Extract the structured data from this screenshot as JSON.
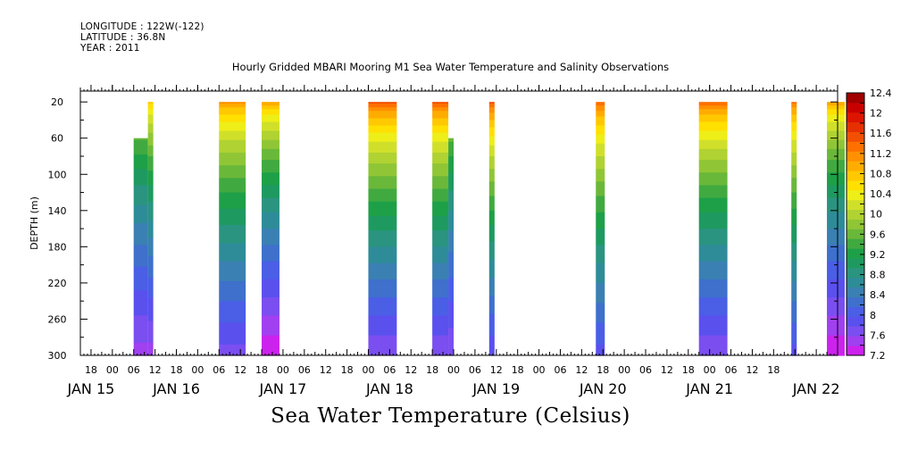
{
  "header": {
    "longitude": "LONGITUDE : 122W(-122)",
    "latitude": "LATITUDE : 36.8N",
    "year": "YEAR : 2011"
  },
  "chart_data": {
    "type": "heatmap",
    "title": "Hourly Gridded MBARI Mooring M1 Sea Water Temperature and Salinity Observations",
    "variable_label": "Sea Water Temperature (Celsius)",
    "ylabel": "DEPTH (m)",
    "ylim": [
      300,
      8
    ],
    "y_ticks": [
      20,
      60,
      100,
      140,
      180,
      220,
      260,
      300
    ],
    "x_range_hours": [
      -9,
      204
    ],
    "x_hour_tick_labels": [
      "18",
      "00",
      "06",
      "12",
      "18",
      "00",
      "06",
      "12",
      "18",
      "00",
      "06",
      "12",
      "18",
      "00",
      "06",
      "12",
      "18",
      "00",
      "06",
      "12",
      "18",
      "00",
      "06",
      "12",
      "18",
      "00",
      "06",
      "12",
      "18",
      "00",
      "06",
      "12",
      "18"
    ],
    "x_day_labels": [
      {
        "label": "JAN 15",
        "hour": -6
      },
      {
        "label": "JAN 16",
        "hour": 18
      },
      {
        "label": "JAN 17",
        "hour": 48
      },
      {
        "label": "JAN 18",
        "hour": 78
      },
      {
        "label": "JAN 19",
        "hour": 108
      },
      {
        "label": "JAN 20",
        "hour": 138
      },
      {
        "label": "JAN 21",
        "hour": 168
      },
      {
        "label": "JAN 22",
        "hour": 198
      }
    ],
    "colorbar": {
      "levels": [
        7.2,
        7.4,
        7.6,
        7.8,
        8.0,
        8.2,
        8.4,
        8.6,
        8.8,
        9.0,
        9.2,
        9.4,
        9.6,
        9.8,
        10.0,
        10.2,
        10.4,
        10.6,
        10.8,
        11.0,
        11.2,
        11.4,
        11.6,
        11.8,
        12.0,
        12.2,
        12.4
      ],
      "labels": [
        "12.4",
        "12",
        "11.6",
        "11.2",
        "10.8",
        "10.4",
        "10",
        "9.6",
        "9.2",
        "8.8",
        "8.4",
        "8",
        "7.6",
        "7.2"
      ],
      "colors": [
        "#cc22ee",
        "#a040f0",
        "#7b4ef0",
        "#5a50ee",
        "#4a5ee6",
        "#3e70cc",
        "#3a80b2",
        "#2e8c98",
        "#2a9480",
        "#1e9a60",
        "#1ea048",
        "#40aa40",
        "#6ab83a",
        "#90c636",
        "#b0d232",
        "#d0e02a",
        "#eeee18",
        "#ffe000",
        "#ffc800",
        "#ffac00",
        "#ff9000",
        "#ff7000",
        "#f25000",
        "#e63000",
        "#dd1400",
        "#c80000",
        "#a00000"
      ]
    },
    "segments": [
      {
        "start": 6,
        "end": 10,
        "top_depth": 60,
        "surface_temp": 10.6,
        "bottom_temp": 7.5
      },
      {
        "start": 10,
        "end": 11.5,
        "top_depth": 20,
        "surface_temp": 11.0,
        "bottom_temp": 7.5
      },
      {
        "start": 30,
        "end": 37.5,
        "top_depth": 20,
        "surface_temp": 11.4,
        "bottom_temp": 7.7
      },
      {
        "start": 42,
        "end": 47,
        "top_depth": 20,
        "surface_temp": 11.3,
        "bottom_temp": 7.2
      },
      {
        "start": 72,
        "end": 80,
        "top_depth": 20,
        "surface_temp": 11.8,
        "bottom_temp": 7.6
      },
      {
        "start": 90,
        "end": 94.5,
        "top_depth": 20,
        "surface_temp": 11.8,
        "bottom_temp": 7.6
      },
      {
        "start": 94.5,
        "end": 96,
        "top_depth": 60,
        "surface_temp": 10.6,
        "bottom_temp": 7.6
      },
      {
        "start": 106,
        "end": 107.5,
        "top_depth": 20,
        "surface_temp": 11.8,
        "bottom_temp": 7.8
      },
      {
        "start": 136,
        "end": 138.5,
        "top_depth": 20,
        "surface_temp": 11.7,
        "bottom_temp": 7.9
      },
      {
        "start": 165,
        "end": 173,
        "top_depth": 20,
        "surface_temp": 11.7,
        "bottom_temp": 7.6
      },
      {
        "start": 191,
        "end": 192.5,
        "top_depth": 20,
        "surface_temp": 11.6,
        "bottom_temp": 7.9
      },
      {
        "start": 201,
        "end": 206,
        "top_depth": 20,
        "surface_temp": 11.3,
        "bottom_temp": 7.2
      }
    ],
    "grid": false,
    "legend": "right"
  }
}
